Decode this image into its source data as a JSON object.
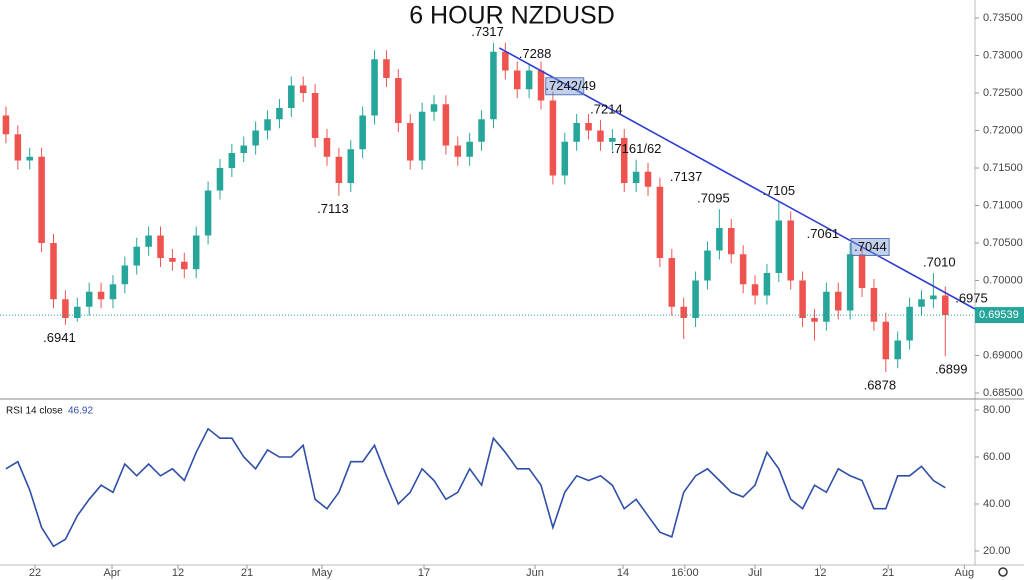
{
  "chart_data": [
    {
      "type": "candlestick",
      "title": "6 HOUR NZDUSD",
      "title_color": "#e8302a",
      "up_color": "#26a69a",
      "down_color": "#ef5350",
      "xlim": [
        0,
        82
      ],
      "xticks": [
        {
          "value": 2.94,
          "label": "22"
        },
        {
          "value": 9.42,
          "label": "Apr"
        },
        {
          "value": 14.97,
          "label": "12"
        },
        {
          "value": 20.77,
          "label": "21"
        },
        {
          "value": 27.08,
          "label": "May"
        },
        {
          "value": 35.66,
          "label": "17"
        },
        {
          "value": 45.0,
          "label": "Jun"
        },
        {
          "value": 52.4,
          "label": "14"
        },
        {
          "value": 57.6,
          "label": "16:00"
        },
        {
          "value": 63.5,
          "label": "Jul"
        },
        {
          "value": 69.0,
          "label": "12"
        },
        {
          "value": 74.7,
          "label": "21"
        },
        {
          "value": 81.1,
          "label": "Aug"
        }
      ],
      "ylim": [
        0.685,
        0.735
      ],
      "yticks": [
        {
          "value": 0.685,
          "label": "0.68500"
        },
        {
          "value": 0.69,
          "label": "0.69000"
        },
        {
          "value": 0.695,
          "label": "0.69500"
        },
        {
          "value": 0.7,
          "label": "0.70000"
        },
        {
          "value": 0.705,
          "label": "0.70500"
        },
        {
          "value": 0.71,
          "label": "0.71000"
        },
        {
          "value": 0.715,
          "label": "0.71500"
        },
        {
          "value": 0.72,
          "label": "0.72000"
        },
        {
          "value": 0.725,
          "label": "0.72500"
        },
        {
          "value": 0.73,
          "label": "0.73000"
        },
        {
          "value": 0.735,
          "label": "0.73500"
        }
      ],
      "open": [
        0.722,
        0.7195,
        0.716,
        0.7165,
        0.705,
        0.6975,
        0.695,
        0.6965,
        0.6985,
        0.6975,
        0.6995,
        0.702,
        0.7045,
        0.706,
        0.703,
        0.7025,
        0.7015,
        0.706,
        0.712,
        0.715,
        0.717,
        0.718,
        0.72,
        0.7215,
        0.723,
        0.726,
        0.725,
        0.719,
        0.7165,
        0.713,
        0.7175,
        0.722,
        0.7295,
        0.727,
        0.721,
        0.716,
        0.7225,
        0.7235,
        0.718,
        0.7165,
        0.7185,
        0.7215,
        0.7305,
        0.728,
        0.7255,
        0.728,
        0.724,
        0.714,
        0.7185,
        0.721,
        0.72,
        0.7185,
        0.719,
        0.713,
        0.7145,
        0.7125,
        0.703,
        0.6965,
        0.695,
        0.7,
        0.704,
        0.707,
        0.7035,
        0.6995,
        0.698,
        0.701,
        0.708,
        0.7,
        0.695,
        0.6945,
        0.6985,
        0.696,
        0.7035,
        0.699,
        0.6945,
        0.6895,
        0.692,
        0.6965,
        0.6975,
        0.698
      ],
      "high": [
        0.7232,
        0.7207,
        0.7177,
        0.7177,
        0.7062,
        0.6987,
        0.6977,
        0.6997,
        0.6997,
        0.7007,
        0.7032,
        0.7057,
        0.7072,
        0.7072,
        0.7042,
        0.7037,
        0.7072,
        0.7132,
        0.7162,
        0.7182,
        0.7192,
        0.7212,
        0.7227,
        0.7242,
        0.7272,
        0.7272,
        0.7262,
        0.7202,
        0.7177,
        0.7187,
        0.7232,
        0.7307,
        0.7307,
        0.7282,
        0.7222,
        0.7237,
        0.7247,
        0.7247,
        0.7192,
        0.7197,
        0.7227,
        0.7317,
        0.7317,
        0.7292,
        0.7288,
        0.7292,
        0.7252,
        0.7197,
        0.7222,
        0.7222,
        0.7214,
        0.7202,
        0.7202,
        0.7161,
        0.7157,
        0.7137,
        0.7042,
        0.6977,
        0.7012,
        0.7052,
        0.7095,
        0.7082,
        0.7047,
        0.7007,
        0.7022,
        0.7105,
        0.7092,
        0.7012,
        0.6962,
        0.6997,
        0.6997,
        0.705,
        0.7047,
        0.7002,
        0.6957,
        0.6932,
        0.6977,
        0.6987,
        0.701,
        0.6992
      ],
      "low": [
        0.7183,
        0.7148,
        0.7148,
        0.7038,
        0.6963,
        0.6941,
        0.6945,
        0.6953,
        0.6963,
        0.6963,
        0.6983,
        0.7008,
        0.7033,
        0.7018,
        0.7013,
        0.7003,
        0.7003,
        0.7048,
        0.7108,
        0.7138,
        0.7158,
        0.7168,
        0.7188,
        0.7203,
        0.7218,
        0.7238,
        0.7178,
        0.7153,
        0.7113,
        0.7118,
        0.7163,
        0.7208,
        0.7258,
        0.7198,
        0.7148,
        0.7148,
        0.7213,
        0.7168,
        0.7153,
        0.7153,
        0.7173,
        0.7203,
        0.7268,
        0.7243,
        0.7243,
        0.7228,
        0.7128,
        0.7128,
        0.7173,
        0.7188,
        0.7173,
        0.7173,
        0.7118,
        0.7118,
        0.7113,
        0.7018,
        0.6953,
        0.6922,
        0.6938,
        0.6988,
        0.7028,
        0.7023,
        0.6983,
        0.6968,
        0.6968,
        0.6998,
        0.6988,
        0.6938,
        0.692,
        0.6933,
        0.6948,
        0.6948,
        0.6978,
        0.6933,
        0.6878,
        0.6883,
        0.6908,
        0.6953,
        0.6963,
        0.6899
      ],
      "close": [
        0.7195,
        0.716,
        0.7165,
        0.705,
        0.6975,
        0.695,
        0.6965,
        0.6985,
        0.6975,
        0.6995,
        0.702,
        0.7045,
        0.706,
        0.703,
        0.7025,
        0.7015,
        0.706,
        0.712,
        0.715,
        0.717,
        0.718,
        0.72,
        0.7215,
        0.723,
        0.726,
        0.725,
        0.719,
        0.7165,
        0.713,
        0.7175,
        0.722,
        0.7295,
        0.727,
        0.721,
        0.716,
        0.7225,
        0.7235,
        0.718,
        0.7165,
        0.7185,
        0.7215,
        0.7305,
        0.728,
        0.7255,
        0.728,
        0.724,
        0.714,
        0.7185,
        0.721,
        0.72,
        0.7185,
        0.719,
        0.713,
        0.7145,
        0.7125,
        0.703,
        0.6965,
        0.695,
        0.7,
        0.704,
        0.707,
        0.7035,
        0.6995,
        0.698,
        0.701,
        0.708,
        0.7,
        0.695,
        0.6945,
        0.6985,
        0.696,
        0.7035,
        0.699,
        0.6945,
        0.6895,
        0.692,
        0.6965,
        0.6975,
        0.698,
        0.69539
      ],
      "last_price": 0.69539,
      "last_price_color": "#26a69a",
      "trendline": {
        "x": [
          42.0,
          82
        ],
        "y": [
          0.731,
          0.6962
        ],
        "color": "#2f3fd6"
      },
      "annotations": [
        {
          "text": ".6941",
          "x": 5,
          "y": 0.6941,
          "side": "below"
        },
        {
          "text": ".7113",
          "x": 28,
          "y": 0.7113,
          "side": "below"
        },
        {
          "text": ".7317",
          "x": 41,
          "y": 0.7317,
          "side": "above"
        },
        {
          "text": ".7288",
          "x": 45,
          "y": 0.7288,
          "side": "above"
        },
        {
          "text": ".7242/49",
          "x": 48,
          "y": 0.7245,
          "side": "above",
          "boxed": true
        },
        {
          "text": ".7214",
          "x": 51,
          "y": 0.7214,
          "side": "above"
        },
        {
          "text": ".7161/62",
          "x": 53.5,
          "y": 0.7161,
          "side": "above"
        },
        {
          "text": ".7137",
          "x": 56,
          "y": 0.7137,
          "side": "right"
        },
        {
          "text": ".7095",
          "x": 60,
          "y": 0.7095,
          "side": "above"
        },
        {
          "text": ".7105",
          "x": 65.5,
          "y": 0.7105,
          "side": "above"
        },
        {
          "text": ".7061",
          "x": 67.5,
          "y": 0.7061,
          "side": "right"
        },
        {
          "text": ".7044",
          "x": 71.5,
          "y": 0.7044,
          "side": "right",
          "boxed": true
        },
        {
          "text": ".6878",
          "x": 74,
          "y": 0.6878,
          "side": "below"
        },
        {
          "text": ".7010",
          "x": 79,
          "y": 0.701,
          "side": "above"
        },
        {
          "text": ".6975",
          "x": 80,
          "y": 0.6975,
          "side": "right"
        },
        {
          "text": ".6899",
          "x": 80,
          "y": 0.6899,
          "side": "below"
        }
      ]
    },
    {
      "type": "line",
      "title": "RSI 14 close",
      "color": "#2f4ea8",
      "xlim": [
        0,
        82
      ],
      "ylim": [
        17,
        83
      ],
      "yticks": [
        {
          "value": 20,
          "label": "20.00"
        },
        {
          "value": 40,
          "label": "40.00"
        },
        {
          "value": 60,
          "label": "60.00"
        },
        {
          "value": 80,
          "label": "80.00"
        }
      ],
      "values": [
        55,
        58,
        46,
        30,
        22,
        25,
        35,
        42,
        48,
        45,
        57,
        52,
        57,
        52,
        55,
        50,
        62,
        72,
        68,
        68,
        60,
        55,
        63,
        60,
        60,
        65,
        42,
        38,
        45,
        58,
        58,
        65,
        52,
        40,
        45,
        55,
        50,
        42,
        45,
        55,
        48,
        68,
        62,
        55,
        55,
        48,
        30,
        45,
        52,
        50,
        52,
        48,
        38,
        42,
        35,
        28,
        26,
        45,
        52,
        55,
        50,
        45,
        43,
        48,
        62,
        55,
        42,
        38,
        48,
        45,
        55,
        52,
        50,
        38,
        38,
        52,
        52,
        56,
        50,
        46.92
      ]
    }
  ]
}
